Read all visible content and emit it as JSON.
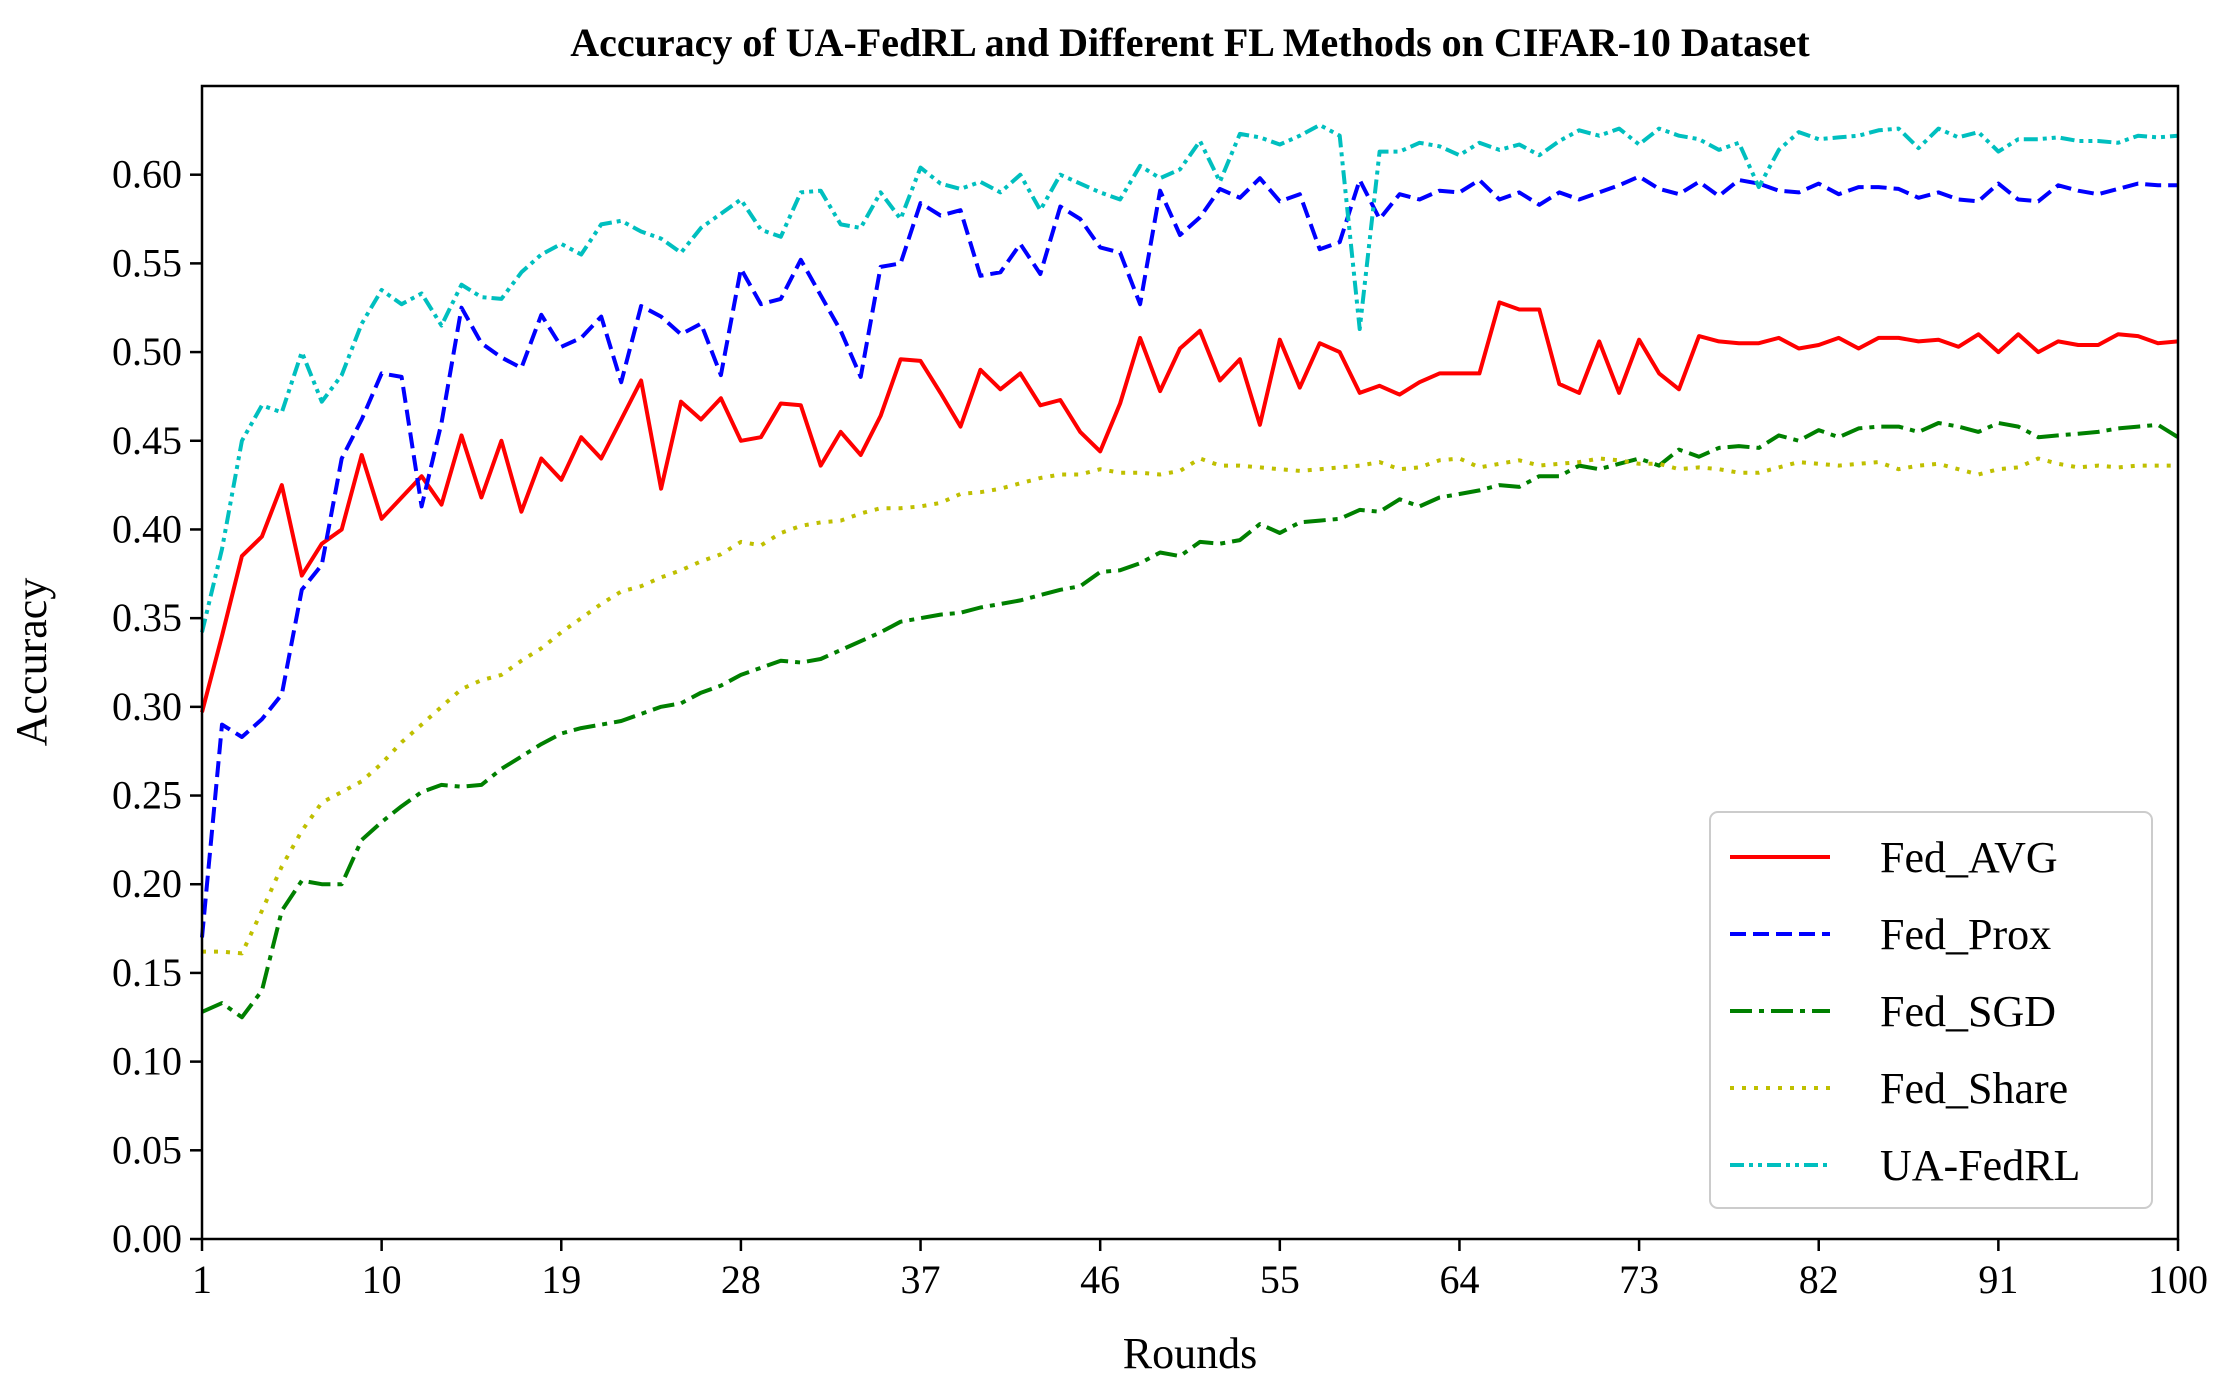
{
  "chart_data": {
    "type": "line",
    "title": "Accuracy of UA-FedRL and Different FL Methods on CIFAR-10 Dataset",
    "xlabel": "Rounds",
    "ylabel": "Accuracy",
    "xlim": [
      1,
      100
    ],
    "ylim": [
      0.0,
      0.65
    ],
    "x_ticks": [
      1,
      10,
      19,
      28,
      37,
      46,
      55,
      64,
      73,
      82,
      91,
      100
    ],
    "y_ticks": [
      "0.00",
      "0.05",
      "0.10",
      "0.15",
      "0.20",
      "0.25",
      "0.30",
      "0.35",
      "0.40",
      "0.45",
      "0.50",
      "0.55",
      "0.60"
    ],
    "grid": false,
    "legend_position": "lower-right",
    "x": [
      1,
      2,
      3,
      4,
      5,
      6,
      7,
      8,
      9,
      10,
      11,
      12,
      13,
      14,
      15,
      16,
      17,
      18,
      19,
      20,
      21,
      22,
      23,
      24,
      25,
      26,
      27,
      28,
      29,
      30,
      31,
      32,
      33,
      34,
      35,
      36,
      37,
      38,
      39,
      40,
      41,
      42,
      43,
      44,
      45,
      46,
      47,
      48,
      49,
      50,
      51,
      52,
      53,
      54,
      55,
      56,
      57,
      58,
      59,
      60,
      61,
      62,
      63,
      64,
      65,
      66,
      67,
      68,
      69,
      70,
      71,
      72,
      73,
      74,
      75,
      76,
      77,
      78,
      79,
      80,
      81,
      82,
      83,
      84,
      85,
      86,
      87,
      88,
      89,
      90,
      91,
      92,
      93,
      94,
      95,
      96,
      97,
      98,
      99,
      100
    ],
    "series": [
      {
        "name": "Fed_AVG",
        "color": "#ff0000",
        "style": "solid",
        "values": [
          0.297,
          0.34,
          0.385,
          0.396,
          0.425,
          0.374,
          0.392,
          0.4,
          0.442,
          0.406,
          0.418,
          0.43,
          0.414,
          0.453,
          0.418,
          0.45,
          0.41,
          0.44,
          0.428,
          0.452,
          0.44,
          0.462,
          0.484,
          0.423,
          0.472,
          0.462,
          0.474,
          0.45,
          0.452,
          0.471,
          0.47,
          0.436,
          0.455,
          0.442,
          0.464,
          0.496,
          0.495,
          0.477,
          0.458,
          0.49,
          0.479,
          0.488,
          0.47,
          0.473,
          0.455,
          0.444,
          0.471,
          0.508,
          0.478,
          0.502,
          0.512,
          0.484,
          0.496,
          0.459,
          0.507,
          0.48,
          0.505,
          0.5,
          0.477,
          0.481,
          0.476,
          0.483,
          0.488,
          0.488,
          0.488,
          0.528,
          0.524,
          0.524,
          0.482,
          0.477,
          0.506,
          0.477,
          0.507,
          0.488,
          0.479,
          0.509,
          0.506,
          0.505,
          0.505,
          0.508,
          0.502,
          0.504,
          0.508,
          0.502,
          0.508,
          0.508,
          0.506,
          0.507,
          0.503,
          0.51,
          0.5,
          0.51,
          0.5,
          0.506,
          0.504,
          0.504,
          0.51,
          0.509,
          0.505,
          0.506
        ]
      },
      {
        "name": "Fed_Prox",
        "color": "#0000ff",
        "style": "dashed",
        "values": [
          0.17,
          0.29,
          0.283,
          0.293,
          0.307,
          0.366,
          0.38,
          0.44,
          0.462,
          0.488,
          0.486,
          0.413,
          0.46,
          0.525,
          0.505,
          0.497,
          0.491,
          0.521,
          0.503,
          0.508,
          0.52,
          0.483,
          0.526,
          0.52,
          0.51,
          0.516,
          0.487,
          0.547,
          0.527,
          0.53,
          0.552,
          0.532,
          0.512,
          0.486,
          0.548,
          0.55,
          0.584,
          0.577,
          0.58,
          0.543,
          0.545,
          0.561,
          0.544,
          0.582,
          0.575,
          0.559,
          0.556,
          0.527,
          0.591,
          0.566,
          0.576,
          0.592,
          0.587,
          0.598,
          0.585,
          0.589,
          0.558,
          0.562,
          0.597,
          0.575,
          0.589,
          0.586,
          0.591,
          0.59,
          0.597,
          0.586,
          0.59,
          0.583,
          0.59,
          0.586,
          0.59,
          0.594,
          0.599,
          0.592,
          0.589,
          0.596,
          0.588,
          0.597,
          0.595,
          0.591,
          0.59,
          0.595,
          0.589,
          0.593,
          0.593,
          0.592,
          0.587,
          0.59,
          0.586,
          0.585,
          0.595,
          0.586,
          0.585,
          0.594,
          0.591,
          0.589,
          0.592,
          0.595,
          0.594,
          0.594
        ]
      },
      {
        "name": "Fed_SGD",
        "color": "#008000",
        "style": "dashdot",
        "values": [
          0.128,
          0.133,
          0.125,
          0.14,
          0.185,
          0.202,
          0.2,
          0.2,
          0.225,
          0.235,
          0.244,
          0.252,
          0.256,
          0.255,
          0.256,
          0.265,
          0.272,
          0.279,
          0.285,
          0.288,
          0.29,
          0.292,
          0.296,
          0.3,
          0.302,
          0.308,
          0.312,
          0.318,
          0.322,
          0.326,
          0.325,
          0.327,
          0.332,
          0.337,
          0.342,
          0.348,
          0.35,
          0.352,
          0.353,
          0.356,
          0.358,
          0.36,
          0.363,
          0.366,
          0.368,
          0.376,
          0.377,
          0.381,
          0.387,
          0.385,
          0.393,
          0.392,
          0.394,
          0.403,
          0.398,
          0.404,
          0.405,
          0.406,
          0.411,
          0.41,
          0.417,
          0.413,
          0.418,
          0.42,
          0.422,
          0.425,
          0.424,
          0.43,
          0.43,
          0.436,
          0.434,
          0.437,
          0.44,
          0.436,
          0.445,
          0.441,
          0.446,
          0.447,
          0.446,
          0.453,
          0.45,
          0.456,
          0.452,
          0.457,
          0.458,
          0.458,
          0.455,
          0.46,
          0.458,
          0.455,
          0.46,
          0.458,
          0.452,
          0.453,
          0.454,
          0.455,
          0.457,
          0.458,
          0.459,
          0.452
        ]
      },
      {
        "name": "Fed_Share",
        "color": "#bfbf00",
        "style": "dotted",
        "values": [
          0.162,
          0.162,
          0.161,
          0.185,
          0.21,
          0.23,
          0.246,
          0.252,
          0.258,
          0.268,
          0.28,
          0.29,
          0.3,
          0.31,
          0.315,
          0.318,
          0.326,
          0.333,
          0.342,
          0.35,
          0.358,
          0.365,
          0.368,
          0.373,
          0.377,
          0.382,
          0.386,
          0.393,
          0.391,
          0.398,
          0.402,
          0.404,
          0.405,
          0.409,
          0.412,
          0.412,
          0.413,
          0.415,
          0.42,
          0.421,
          0.423,
          0.426,
          0.429,
          0.431,
          0.431,
          0.434,
          0.432,
          0.432,
          0.431,
          0.433,
          0.44,
          0.436,
          0.436,
          0.435,
          0.434,
          0.433,
          0.434,
          0.435,
          0.436,
          0.438,
          0.434,
          0.435,
          0.439,
          0.44,
          0.435,
          0.437,
          0.439,
          0.436,
          0.437,
          0.438,
          0.44,
          0.439,
          0.437,
          0.437,
          0.434,
          0.435,
          0.434,
          0.432,
          0.432,
          0.435,
          0.438,
          0.437,
          0.436,
          0.437,
          0.438,
          0.434,
          0.436,
          0.437,
          0.434,
          0.431,
          0.434,
          0.435,
          0.44,
          0.437,
          0.435,
          0.436,
          0.435,
          0.436,
          0.436,
          0.436
        ]
      },
      {
        "name": "UA-FedRL",
        "color": "#00bfbf",
        "style": "dashdotdot",
        "values": [
          0.342,
          0.389,
          0.45,
          0.47,
          0.466,
          0.5,
          0.472,
          0.487,
          0.516,
          0.535,
          0.527,
          0.533,
          0.515,
          0.538,
          0.531,
          0.53,
          0.545,
          0.555,
          0.561,
          0.555,
          0.572,
          0.574,
          0.568,
          0.564,
          0.556,
          0.57,
          0.578,
          0.586,
          0.569,
          0.565,
          0.59,
          0.591,
          0.572,
          0.57,
          0.59,
          0.575,
          0.604,
          0.595,
          0.592,
          0.596,
          0.59,
          0.6,
          0.58,
          0.6,
          0.595,
          0.59,
          0.586,
          0.605,
          0.598,
          0.603,
          0.619,
          0.596,
          0.623,
          0.621,
          0.617,
          0.622,
          0.628,
          0.622,
          0.513,
          0.613,
          0.613,
          0.618,
          0.616,
          0.611,
          0.618,
          0.614,
          0.617,
          0.611,
          0.619,
          0.625,
          0.622,
          0.626,
          0.617,
          0.626,
          0.622,
          0.62,
          0.614,
          0.618,
          0.593,
          0.614,
          0.624,
          0.62,
          0.621,
          0.622,
          0.625,
          0.626,
          0.615,
          0.626,
          0.621,
          0.624,
          0.613,
          0.62,
          0.62,
          0.621,
          0.619,
          0.619,
          0.618,
          0.622,
          0.621,
          0.622
        ]
      }
    ]
  }
}
